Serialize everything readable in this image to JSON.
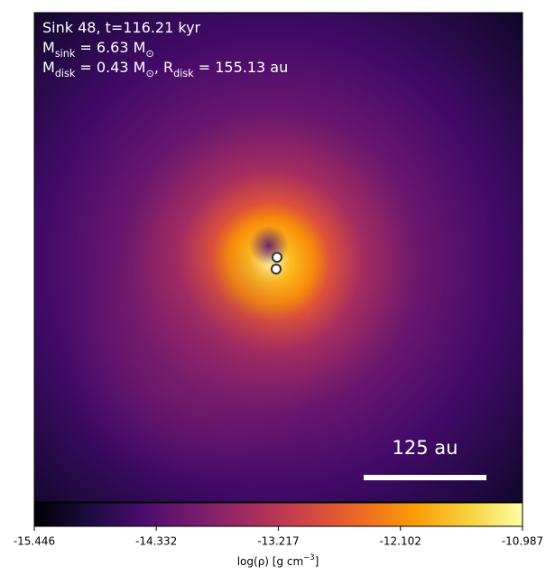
{
  "chart_data": {
    "type": "image",
    "annotation_lines": [
      [
        {
          "text": "Sink 48, t=116.21 kyr"
        }
      ],
      [
        {
          "text": "M"
        },
        {
          "sub": "sink"
        },
        {
          "text": " = 6.63 M"
        },
        {
          "sub": "⊙"
        }
      ],
      [
        {
          "text": "M"
        },
        {
          "sub": "disk"
        },
        {
          "text": " = 0.43 M"
        },
        {
          "sub": "⊙"
        },
        {
          "text": ", R"
        },
        {
          "sub": "disk"
        },
        {
          "text": " = 155.13 au"
        }
      ]
    ],
    "scale_bar_label": "125 au",
    "colorbar": {
      "colormap": "inferno",
      "clim": [
        -15.446,
        -10.987
      ],
      "ticks": [
        -15.446,
        -14.332,
        -13.217,
        -12.102,
        -10.987
      ],
      "label": [
        {
          "text": "log(ρ) [g cm"
        },
        {
          "sup": "−3"
        },
        {
          "text": "]"
        }
      ]
    }
  }
}
